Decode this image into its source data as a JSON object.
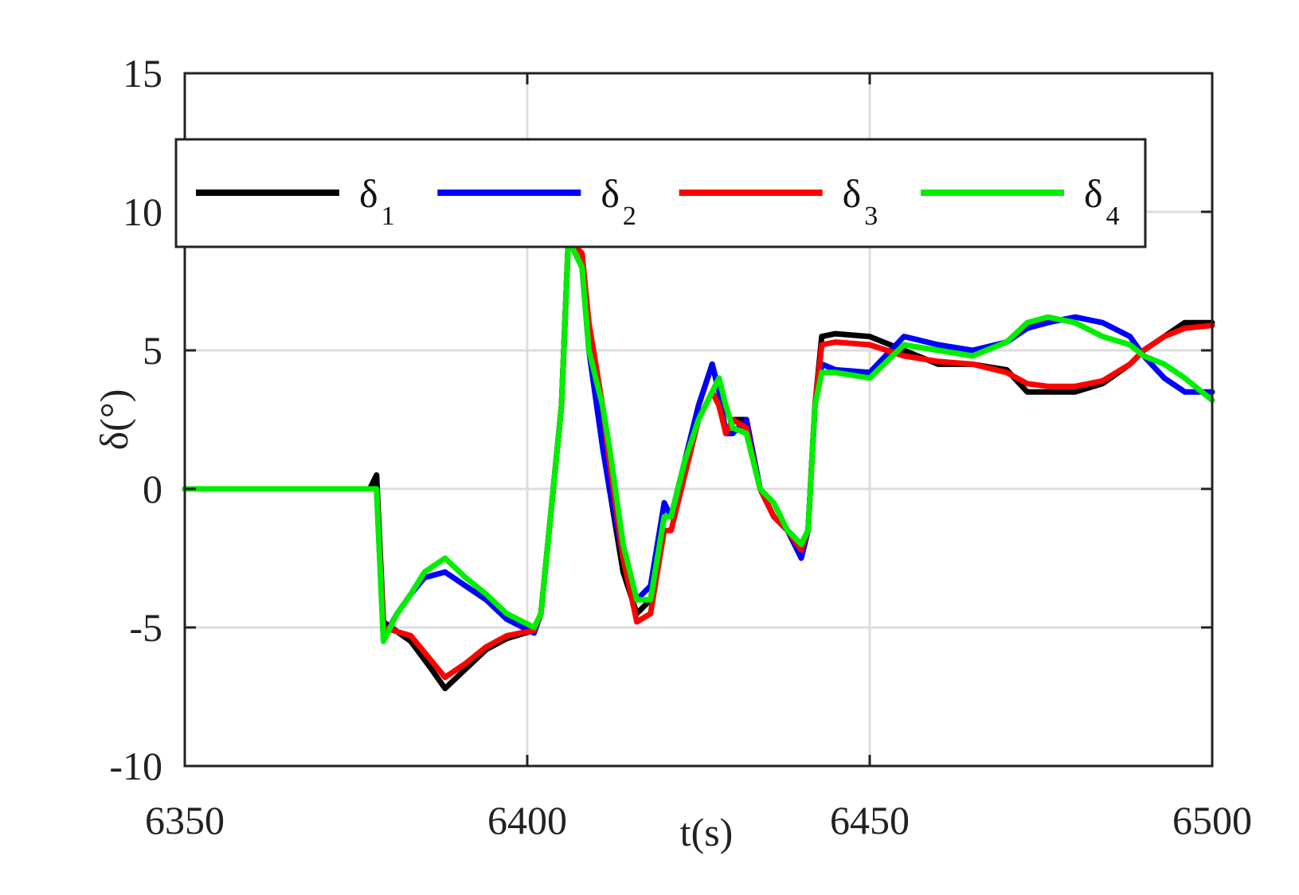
{
  "chart_data": {
    "type": "line",
    "title": "",
    "xlabel": "t(s)",
    "ylabel": "δ(°)",
    "xlim": [
      6350,
      6500
    ],
    "ylim": [
      -10,
      15
    ],
    "xticks": [
      6350,
      6400,
      6450,
      6500
    ],
    "yticks": [
      -10,
      -5,
      0,
      5,
      10,
      15
    ],
    "grid": true,
    "legend_placement": "top, horizontal",
    "series": [
      {
        "name": "δ1",
        "symbol": "δ",
        "subscript": "1",
        "color": "#000000",
        "x": [
          6350,
          6377,
          6378,
          6379,
          6383,
          6386,
          6388,
          6391,
          6394,
          6397,
          6401,
          6402,
          6405,
          6406,
          6408,
          6409,
          6411,
          6412,
          6414,
          6416,
          6418,
          6420,
          6421,
          6423,
          6425,
          6427,
          6428,
          6429,
          6430,
          6432,
          6434,
          6436,
          6438,
          6440,
          6441,
          6442,
          6443,
          6445,
          6450,
          6455,
          6460,
          6465,
          6470,
          6473,
          6476,
          6480,
          6484,
          6488,
          6490,
          6493,
          6496,
          6500
        ],
        "y": [
          0,
          0,
          0.5,
          -4.8,
          -5.5,
          -6.5,
          -7.2,
          -6.5,
          -5.8,
          -5.4,
          -5.1,
          -4.5,
          3,
          9,
          8,
          5.5,
          2,
          0,
          -3,
          -4.5,
          -4,
          -1,
          -1,
          1,
          3,
          4.5,
          3.5,
          2,
          2.5,
          2.5,
          0,
          -1,
          -1.5,
          -2,
          -1.5,
          3,
          5.5,
          5.6,
          5.5,
          5,
          4.5,
          4.5,
          4.3,
          3.5,
          3.5,
          3.5,
          3.8,
          4.5,
          5,
          5.5,
          6,
          6
        ]
      },
      {
        "name": "δ2",
        "symbol": "δ",
        "subscript": "2",
        "color": "#0000ff",
        "x": [
          6350,
          6377,
          6378,
          6379,
          6381,
          6383,
          6385,
          6388,
          6391,
          6394,
          6397,
          6401,
          6402,
          6405,
          6406,
          6408,
          6409,
          6411,
          6412,
          6414,
          6416,
          6418,
          6420,
          6421,
          6423,
          6425,
          6427,
          6428,
          6429,
          6430,
          6432,
          6434,
          6436,
          6438,
          6440,
          6441,
          6442,
          6443,
          6445,
          6450,
          6455,
          6460,
          6465,
          6470,
          6473,
          6476,
          6480,
          6484,
          6488,
          6490,
          6493,
          6496,
          6500
        ],
        "y": [
          0,
          0,
          0,
          -5.4,
          -4.5,
          -3.8,
          -3.2,
          -3,
          -3.5,
          -4,
          -4.7,
          -5.2,
          -4.5,
          3,
          9,
          8,
          5,
          1.5,
          0,
          -2.5,
          -4,
          -3.5,
          -0.5,
          -1,
          1,
          3,
          4.5,
          3.5,
          2,
          2,
          2.5,
          0,
          -1,
          -1.5,
          -2.5,
          -1.5,
          3,
          4.5,
          4.3,
          4.2,
          5.5,
          5.2,
          5,
          5.3,
          5.8,
          6,
          6.2,
          6,
          5.5,
          4.8,
          4,
          3.5,
          3.5
        ]
      },
      {
        "name": "δ3",
        "symbol": "δ",
        "subscript": "3",
        "color": "#ff0000",
        "x": [
          6350,
          6377,
          6378,
          6379,
          6383,
          6386,
          6388,
          6391,
          6394,
          6397,
          6401,
          6402,
          6405,
          6406,
          6408,
          6409,
          6411,
          6412,
          6414,
          6416,
          6418,
          6420,
          6421,
          6423,
          6425,
          6427,
          6428,
          6429,
          6430,
          6432,
          6434,
          6436,
          6438,
          6440,
          6441,
          6442,
          6443,
          6445,
          6450,
          6455,
          6460,
          6465,
          6470,
          6473,
          6476,
          6480,
          6484,
          6488,
          6490,
          6493,
          6496,
          6500
        ],
        "y": [
          0,
          0,
          0,
          -5,
          -5.3,
          -6.2,
          -6.8,
          -6.3,
          -5.7,
          -5.3,
          -5.1,
          -4.5,
          3,
          9,
          8.5,
          6,
          3,
          1,
          -2.5,
          -4.8,
          -4.5,
          -1.5,
          -1.5,
          0.5,
          2.5,
          3.5,
          3,
          2,
          2.5,
          2.2,
          0,
          -1,
          -1.5,
          -2.2,
          -1.5,
          3,
          5.2,
          5.3,
          5.2,
          4.8,
          4.6,
          4.5,
          4.2,
          3.8,
          3.7,
          3.7,
          3.9,
          4.5,
          5,
          5.5,
          5.8,
          5.9
        ]
      },
      {
        "name": "δ4",
        "symbol": "δ",
        "subscript": "4",
        "color": "#00ee00",
        "x": [
          6350,
          6377,
          6378,
          6379,
          6381,
          6383,
          6385,
          6388,
          6391,
          6394,
          6397,
          6401,
          6402,
          6405,
          6406,
          6408,
          6409,
          6411,
          6412,
          6414,
          6416,
          6418,
          6420,
          6421,
          6423,
          6425,
          6427,
          6428,
          6429,
          6430,
          6432,
          6434,
          6436,
          6438,
          6440,
          6441,
          6442,
          6443,
          6445,
          6450,
          6455,
          6460,
          6465,
          6470,
          6473,
          6476,
          6480,
          6484,
          6488,
          6490,
          6493,
          6496,
          6500
        ],
        "y": [
          0,
          0,
          0,
          -5.5,
          -4.5,
          -3.8,
          -3,
          -2.5,
          -3.2,
          -3.8,
          -4.5,
          -5,
          -4.5,
          3,
          9,
          8,
          5,
          3,
          1.5,
          -2,
          -4,
          -4,
          -1,
          -1,
          1,
          2.5,
          3.5,
          4,
          3,
          2.2,
          2,
          0,
          -0.5,
          -1.5,
          -2,
          -1.5,
          3,
          4.2,
          4.2,
          4,
          5.2,
          5,
          4.8,
          5.3,
          6,
          6.2,
          6,
          5.5,
          5.2,
          4.8,
          4.5,
          4,
          3.2
        ]
      }
    ]
  }
}
